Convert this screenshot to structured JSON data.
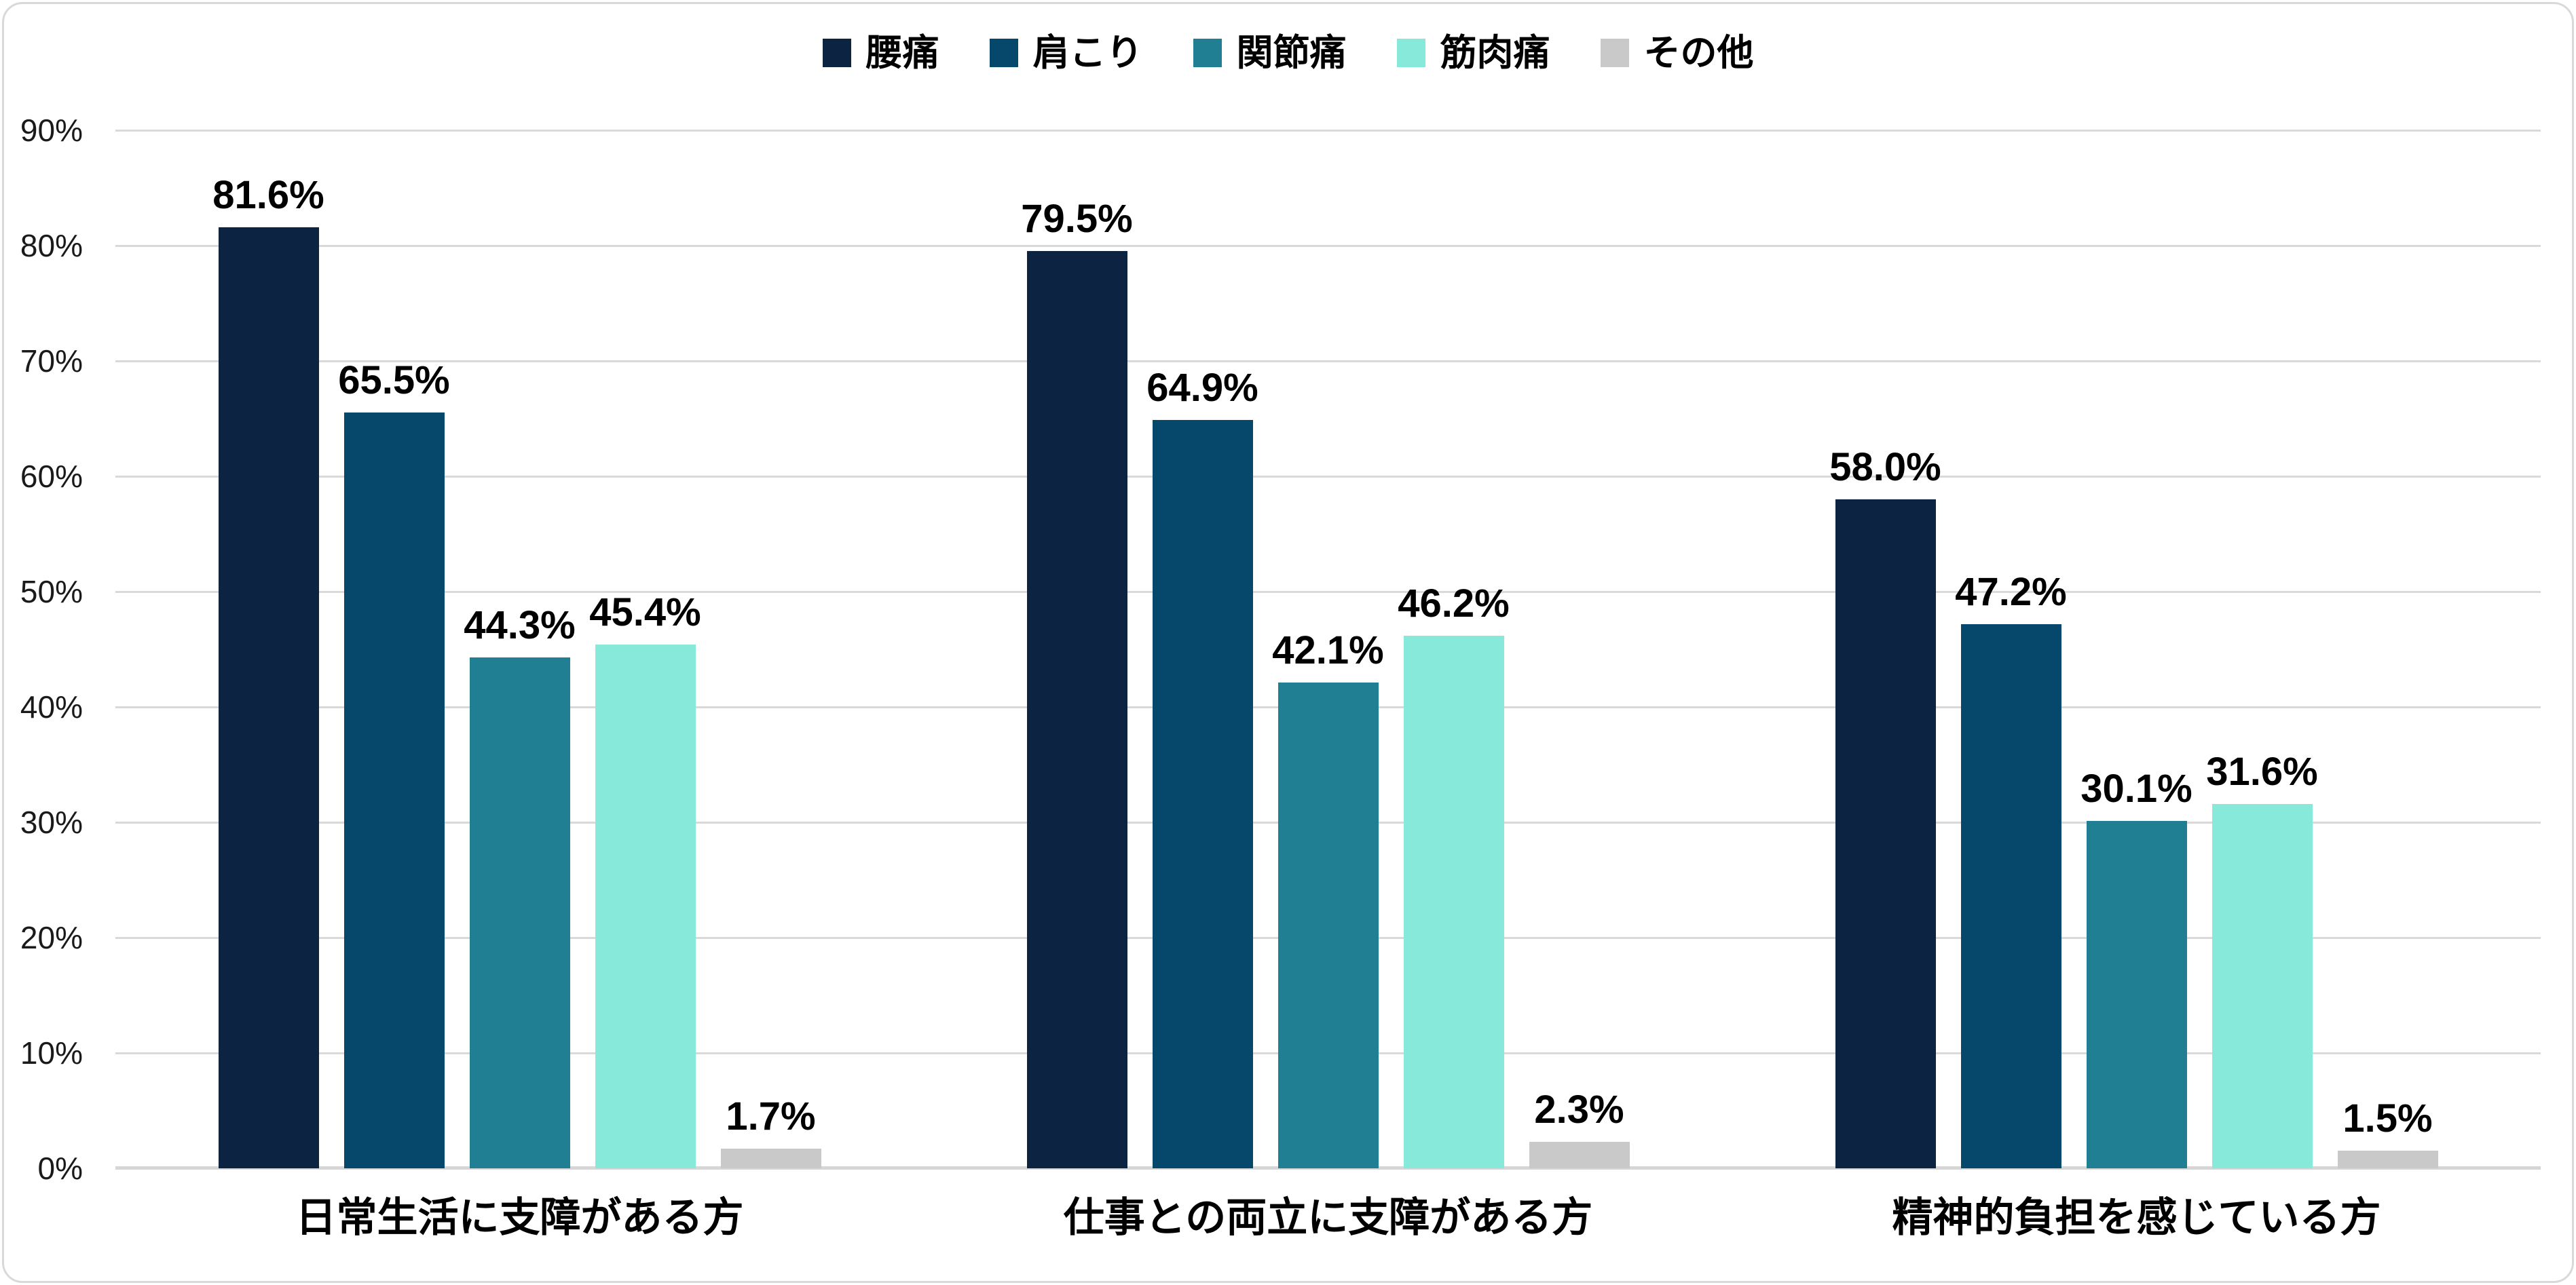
{
  "chart_data": {
    "type": "bar",
    "title": "",
    "categories": [
      "日常生活に支障がある方",
      "仕事との両立に支障がある方",
      "精神的負担を感じている方"
    ],
    "series": [
      {
        "name": "腰痛",
        "color": "#0d2342",
        "values": [
          81.6,
          79.5,
          58.0
        ],
        "labels": [
          "81.6%",
          "79.5%",
          "58.0%"
        ]
      },
      {
        "name": "肩こり",
        "color": "#05486b",
        "values": [
          65.5,
          64.9,
          47.2
        ],
        "labels": [
          "65.5%",
          "64.9%",
          "47.2%"
        ]
      },
      {
        "name": "関節痛",
        "color": "#217f93",
        "values": [
          44.3,
          42.1,
          30.1
        ],
        "labels": [
          "44.3%",
          "42.1%",
          "30.1%"
        ]
      },
      {
        "name": "筋肉痛",
        "color": "#87e9da",
        "values": [
          45.4,
          46.2,
          31.6
        ],
        "labels": [
          "45.4%",
          "46.2%",
          "31.6%"
        ]
      },
      {
        "name": "その他",
        "color": "#c9c9c9",
        "values": [
          1.7,
          2.3,
          1.5
        ],
        "labels": [
          "1.7%",
          "2.3%",
          "1.5%"
        ]
      }
    ],
    "ylim": [
      0,
      90
    ],
    "yticks_top_down": [
      "90%",
      "80%",
      "70%",
      "60%",
      "50%",
      "40%",
      "30%",
      "20%",
      "10%",
      "0%"
    ],
    "xlabel": "",
    "ylabel": "",
    "grid": true,
    "gridline_color": "#d9d9d9",
    "legend_position": "top",
    "background_color": "#ffffff"
  }
}
